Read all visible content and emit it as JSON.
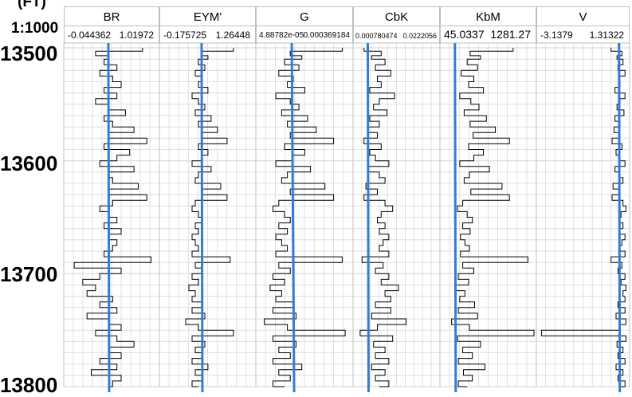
{
  "depth_column": {
    "unit": "(FT)",
    "scale": "1:1000",
    "depth_labels": [
      "13500",
      "13600",
      "13700",
      "13800"
    ]
  },
  "chart_data": {
    "type": "line",
    "depth_range": [
      13500,
      13800
    ],
    "depth_axis": "inverted",
    "grid": true,
    "tracks": [
      {
        "title": "BR",
        "min_label": "-0.044362",
        "max_label": "1.01972",
        "xlim": [
          -0.044362,
          1.01972
        ],
        "reference_line": 0.45,
        "depth": [
          13500,
          13503,
          13507,
          13510,
          13515,
          13520,
          13525,
          13530,
          13535,
          13540,
          13545,
          13550,
          13555,
          13560,
          13565,
          13570,
          13575,
          13580,
          13585,
          13590,
          13595,
          13600,
          13605,
          13610,
          13615,
          13620,
          13625,
          13630,
          13635,
          13640,
          13645,
          13650,
          13655,
          13660,
          13665,
          13670,
          13675,
          13680,
          13685,
          13690,
          13695,
          13700,
          13705,
          13710,
          13715,
          13720,
          13725,
          13730,
          13735,
          13740,
          13745,
          13750,
          13755,
          13760,
          13765,
          13770,
          13775,
          13780,
          13785,
          13790,
          13795,
          13800
        ],
        "values": [
          0.85,
          0.3,
          0.45,
          0.4,
          0.55,
          0.35,
          0.5,
          0.6,
          0.4,
          0.55,
          0.3,
          0.45,
          0.65,
          0.4,
          0.5,
          0.75,
          0.45,
          0.9,
          0.4,
          0.7,
          0.55,
          0.35,
          0.75,
          0.45,
          0.5,
          0.8,
          0.45,
          0.9,
          0.5,
          0.35,
          0.45,
          0.55,
          0.4,
          0.6,
          0.45,
          0.55,
          0.5,
          0.4,
          0.95,
          0.05,
          0.6,
          0.35,
          0.15,
          0.3,
          0.2,
          0.5,
          0.35,
          0.55,
          0.2,
          0.45,
          0.6,
          0.3,
          0.55,
          0.75,
          0.45,
          0.6,
          0.35,
          0.55,
          0.25,
          0.6,
          0.5,
          0.45
        ]
      },
      {
        "title": "EYM'",
        "min_label": "-0.175725",
        "max_label": "1.26448",
        "xlim": [
          -0.175725,
          1.26448
        ],
        "reference_line": 0.45,
        "depth": [
          13500,
          13503,
          13507,
          13510,
          13515,
          13520,
          13525,
          13530,
          13535,
          13540,
          13545,
          13550,
          13555,
          13560,
          13565,
          13570,
          13575,
          13580,
          13585,
          13590,
          13595,
          13600,
          13605,
          13610,
          13615,
          13620,
          13625,
          13630,
          13635,
          13640,
          13645,
          13650,
          13655,
          13660,
          13665,
          13670,
          13675,
          13680,
          13685,
          13690,
          13695,
          13700,
          13705,
          13710,
          13715,
          13720,
          13725,
          13730,
          13735,
          13740,
          13745,
          13750,
          13755,
          13760,
          13765,
          13770,
          13775,
          13780,
          13785,
          13790,
          13795,
          13800
        ],
        "values": [
          0.95,
          0.45,
          0.55,
          0.4,
          0.5,
          0.35,
          0.45,
          0.4,
          0.55,
          0.3,
          0.4,
          0.5,
          0.35,
          0.6,
          0.4,
          0.7,
          0.45,
          0.85,
          0.4,
          0.55,
          0.45,
          0.3,
          0.6,
          0.4,
          0.35,
          0.75,
          0.45,
          0.85,
          0.35,
          0.3,
          0.4,
          0.45,
          0.35,
          0.4,
          0.3,
          0.35,
          0.4,
          0.3,
          0.9,
          0.35,
          0.45,
          0.3,
          0.4,
          0.25,
          0.35,
          0.3,
          0.45,
          0.3,
          0.5,
          0.2,
          0.4,
          0.95,
          0.3,
          0.5,
          0.35,
          0.45,
          0.3,
          0.55,
          0.35,
          0.45,
          0.3,
          0.4
        ]
      },
      {
        "title": "G",
        "min_label": "4.88782e-05",
        "max_label": "0.000369184",
        "xlim": [
          4.88782e-05,
          0.000369184
        ],
        "reference_line": 0.000165,
        "depth": [
          13500,
          13503,
          13507,
          13510,
          13515,
          13520,
          13525,
          13530,
          13535,
          13540,
          13545,
          13550,
          13555,
          13560,
          13565,
          13570,
          13575,
          13580,
          13585,
          13590,
          13595,
          13600,
          13605,
          13610,
          13615,
          13620,
          13625,
          13630,
          13635,
          13640,
          13645,
          13650,
          13655,
          13660,
          13665,
          13670,
          13675,
          13680,
          13685,
          13690,
          13695,
          13700,
          13705,
          13710,
          13715,
          13720,
          13725,
          13730,
          13735,
          13740,
          13745,
          13750,
          13755,
          13760,
          13765,
          13770,
          13775,
          13780,
          13785,
          13790,
          13795,
          13800
        ],
        "values": [
          0.00034,
          0.00016,
          0.0002,
          0.00014,
          0.00019,
          0.00012,
          0.00017,
          0.00015,
          0.00021,
          0.00011,
          0.00016,
          0.00019,
          0.00013,
          0.00022,
          0.00015,
          0.00025,
          0.00016,
          0.00031,
          0.00014,
          0.00021,
          0.00017,
          0.00011,
          0.00023,
          0.00015,
          0.00013,
          0.00028,
          0.00016,
          0.00031,
          0.00012,
          0.0001,
          0.00014,
          0.00016,
          0.00012,
          0.00015,
          0.00011,
          0.00013,
          0.00015,
          0.00011,
          0.00034,
          0.00012,
          0.00016,
          0.0001,
          0.00014,
          9e-05,
          0.00013,
          0.00011,
          0.00017,
          0.0001,
          0.00018,
          7e-05,
          0.00015,
          0.00035,
          0.0001,
          0.00018,
          0.00012,
          0.00016,
          0.0001,
          0.0002,
          0.00012,
          0.00016,
          0.0001,
          0.00014
        ]
      },
      {
        "title": "CbK",
        "min_label": "0.000780474",
        "max_label": "0.0222056",
        "xlim": [
          0.000780474,
          0.0222056
        ],
        "reference_line": 0.004,
        "depth": [
          13500,
          13503,
          13507,
          13510,
          13515,
          13520,
          13525,
          13530,
          13535,
          13540,
          13545,
          13550,
          13555,
          13560,
          13565,
          13570,
          13575,
          13580,
          13585,
          13590,
          13595,
          13600,
          13605,
          13610,
          13615,
          13620,
          13625,
          13630,
          13635,
          13640,
          13645,
          13650,
          13655,
          13660,
          13665,
          13670,
          13675,
          13680,
          13685,
          13690,
          13695,
          13700,
          13705,
          13710,
          13715,
          13720,
          13725,
          13730,
          13735,
          13740,
          13745,
          13750,
          13755,
          13760,
          13765,
          13770,
          13775,
          13780,
          13785,
          13790,
          13795,
          13800
        ],
        "values": [
          0.003,
          0.0075,
          0.005,
          0.0085,
          0.006,
          0.01,
          0.0065,
          0.0075,
          0.0045,
          0.011,
          0.007,
          0.0055,
          0.009,
          0.0045,
          0.007,
          0.004,
          0.0065,
          0.003,
          0.0075,
          0.0045,
          0.006,
          0.0095,
          0.004,
          0.007,
          0.0085,
          0.0035,
          0.0065,
          0.003,
          0.0085,
          0.0105,
          0.0075,
          0.0065,
          0.0085,
          0.007,
          0.0095,
          0.008,
          0.007,
          0.0095,
          0.0025,
          0.008,
          0.006,
          0.0095,
          0.0075,
          0.012,
          0.0085,
          0.01,
          0.006,
          0.01,
          0.005,
          0.014,
          0.0065,
          0.002,
          0.0105,
          0.0055,
          0.0085,
          0.006,
          0.0095,
          0.005,
          0.0085,
          0.006,
          0.0095,
          0.007
        ]
      },
      {
        "title": "KbM",
        "min_label": "45.0337",
        "max_label": "1281.27",
        "xlim": [
          45.0337,
          1281.27
        ],
        "reference_line": 215,
        "depth": [
          13500,
          13503,
          13507,
          13510,
          13515,
          13520,
          13525,
          13530,
          13535,
          13540,
          13545,
          13550,
          13555,
          13560,
          13565,
          13570,
          13575,
          13580,
          13585,
          13590,
          13595,
          13600,
          13605,
          13610,
          13615,
          13620,
          13625,
          13630,
          13635,
          13640,
          13645,
          13650,
          13655,
          13660,
          13665,
          13670,
          13675,
          13680,
          13685,
          13690,
          13695,
          13700,
          13705,
          13710,
          13715,
          13720,
          13725,
          13730,
          13735,
          13740,
          13745,
          13750,
          13755,
          13760,
          13765,
          13770,
          13775,
          13780,
          13785,
          13790,
          13795,
          13800
        ],
        "values": [
          1000,
          420,
          560,
          380,
          520,
          300,
          470,
          400,
          600,
          280,
          430,
          540,
          340,
          640,
          420,
          760,
          460,
          950,
          400,
          600,
          470,
          280,
          680,
          410,
          340,
          850,
          430,
          950,
          320,
          250,
          380,
          450,
          320,
          420,
          290,
          350,
          410,
          290,
          1200,
          320,
          470,
          260,
          400,
          220,
          350,
          280,
          480,
          260,
          520,
          170,
          410,
          1281,
          250,
          560,
          320,
          450,
          260,
          620,
          330,
          450,
          260,
          380
        ]
      },
      {
        "title": "V",
        "min_label": "-3.1379",
        "max_label": "1.31322",
        "xlim": [
          -3.1379,
          1.31322
        ],
        "reference_line": 0.9,
        "depth": [
          13500,
          13503,
          13507,
          13510,
          13515,
          13520,
          13525,
          13530,
          13535,
          13540,
          13545,
          13550,
          13555,
          13560,
          13565,
          13570,
          13575,
          13580,
          13585,
          13590,
          13595,
          13600,
          13605,
          13610,
          13615,
          13620,
          13625,
          13630,
          13635,
          13640,
          13645,
          13650,
          13655,
          13660,
          13665,
          13670,
          13675,
          13680,
          13685,
          13690,
          13695,
          13700,
          13705,
          13710,
          13715,
          13720,
          13725,
          13730,
          13735,
          13740,
          13745,
          13750,
          13755,
          13760,
          13765,
          13770,
          13775,
          13780,
          13785,
          13790,
          13795,
          13800
        ],
        "values": [
          0.5,
          1.05,
          0.8,
          1.1,
          0.85,
          1.2,
          0.9,
          0.95,
          0.7,
          1.2,
          0.95,
          0.8,
          1.15,
          0.7,
          0.95,
          0.65,
          0.9,
          0.55,
          1.05,
          0.75,
          0.9,
          1.2,
          0.7,
          0.95,
          1.1,
          0.6,
          0.9,
          0.55,
          1.1,
          1.25,
          1.0,
          0.9,
          1.1,
          0.95,
          1.2,
          1.05,
          0.95,
          1.2,
          0.5,
          1.05,
          0.85,
          1.2,
          1.0,
          1.25,
          1.1,
          1.2,
          0.85,
          1.2,
          0.75,
          1.25,
          0.9,
          -3.0,
          1.25,
          0.8,
          1.1,
          0.85,
          1.2,
          0.75,
          1.1,
          0.85,
          1.2,
          0.95
        ]
      }
    ]
  },
  "colors": {
    "curve": "#000000",
    "reference_line": "#2f7fd1",
    "grid": "#d9d9d9",
    "border": "#bfbfbf"
  }
}
